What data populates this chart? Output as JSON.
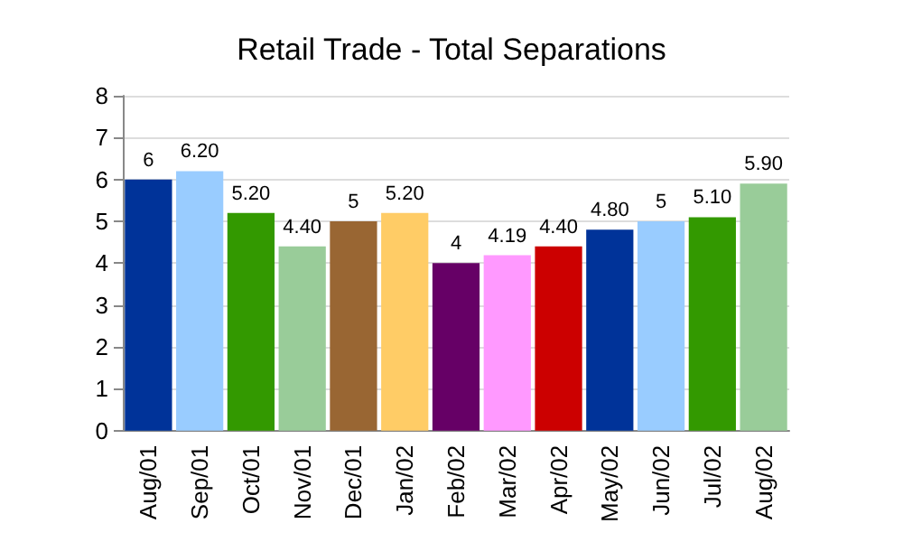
{
  "chart_data": {
    "type": "bar",
    "title": "Retail Trade - Total Separations",
    "categories": [
      "Aug/01",
      "Sep/01",
      "Oct/01",
      "Nov/01",
      "Dec/01",
      "Jan/02",
      "Feb/02",
      "Mar/02",
      "Apr/02",
      "May/02",
      "Jun/02",
      "Jul/02",
      "Aug/02"
    ],
    "values": [
      6,
      6.2,
      5.2,
      4.4,
      5,
      5.2,
      4,
      4.19,
      4.4,
      4.8,
      5,
      5.1,
      5.9
    ],
    "colors": [
      "#003399",
      "#99ccff",
      "#339900",
      "#99cc99",
      "#996633",
      "#ffcc66",
      "#660066",
      "#ff99ff",
      "#cc0000",
      "#003399",
      "#99ccff",
      "#339900",
      "#99cc99"
    ],
    "value_labels": [
      "6",
      "6.20",
      "5.20",
      "4.40",
      "5",
      "5.20",
      "4",
      "4.19",
      "4.40",
      "4.80",
      "5",
      "5.10",
      "5.90"
    ],
    "ylim": [
      0,
      8
    ],
    "yticks": [
      0,
      1,
      2,
      3,
      4,
      5,
      6,
      7,
      8
    ],
    "grid": "y"
  }
}
